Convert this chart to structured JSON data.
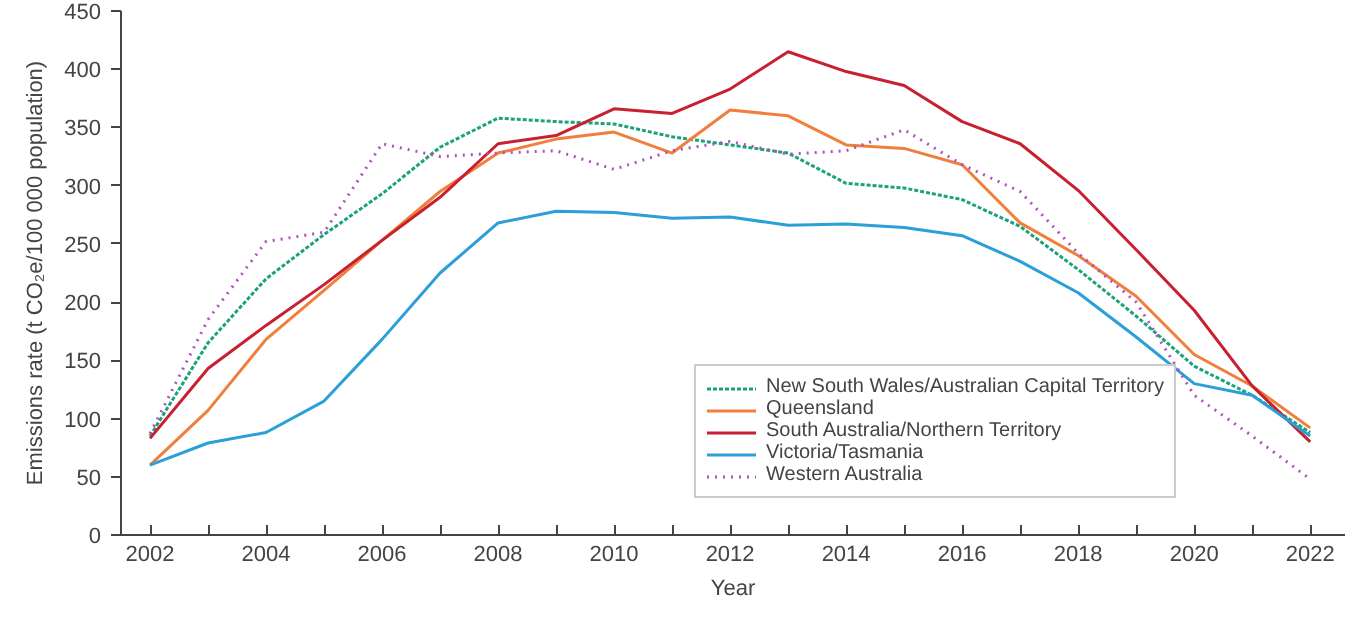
{
  "chart_data": {
    "type": "line",
    "xlabel": "Year",
    "ylabel": "Emissions rate (t CO₂e/100 000 population)",
    "x": [
      2002,
      2003,
      2004,
      2005,
      2006,
      2007,
      2008,
      2009,
      2010,
      2011,
      2012,
      2013,
      2014,
      2015,
      2016,
      2017,
      2018,
      2019,
      2020,
      2021,
      2022
    ],
    "series": [
      {
        "name": "New South Wales/Australian Capital Territory",
        "color": "#1aa37a",
        "line_style": "dashed",
        "values": [
          85,
          165,
          220,
          258,
          293,
          333,
          358,
          355,
          353,
          342,
          335,
          328,
          302,
          298,
          288,
          265,
          228,
          188,
          145,
          120,
          88
        ]
      },
      {
        "name": "Queensland",
        "color": "#f07f3c",
        "line_style": "solid",
        "values": [
          60,
          107,
          168,
          210,
          253,
          295,
          328,
          340,
          346,
          328,
          365,
          360,
          335,
          332,
          318,
          268,
          240,
          205,
          155,
          128,
          92
        ]
      },
      {
        "name": "South Australia/Northern Territory",
        "color": "#c8202f",
        "line_style": "solid",
        "values": [
          83,
          143,
          180,
          215,
          253,
          290,
          336,
          343,
          366,
          362,
          383,
          415,
          398,
          386,
          355,
          336,
          296,
          245,
          193,
          128,
          80
        ]
      },
      {
        "name": "Victoria/Tasmania",
        "color": "#2a9fd8",
        "line_style": "solid",
        "values": [
          60,
          79,
          88,
          115,
          168,
          225,
          268,
          278,
          277,
          272,
          273,
          266,
          267,
          264,
          257,
          235,
          208,
          170,
          130,
          120,
          85
        ]
      },
      {
        "name": "Western Australia",
        "color": "#b04fbf",
        "line_style": "dotted",
        "values": [
          87,
          185,
          252,
          260,
          336,
          325,
          328,
          330,
          314,
          330,
          338,
          327,
          330,
          348,
          318,
          295,
          242,
          200,
          120,
          85,
          48
        ]
      }
    ],
    "xlim": [
      2001.5,
      2022.6
    ],
    "ylim": [
      0,
      450
    ],
    "xticks": [
      2002,
      {
        "value": 2003,
        "label": null
      },
      2004,
      {
        "value": 2005,
        "label": null
      },
      2006,
      {
        "value": 2007,
        "label": null
      },
      2008,
      {
        "value": 2009,
        "label": null
      },
      2010,
      {
        "value": 2011,
        "label": null
      },
      2012,
      {
        "value": 2013,
        "label": null
      },
      2014,
      {
        "value": 2015,
        "label": null
      },
      2016,
      {
        "value": 2017,
        "label": null
      },
      2018,
      {
        "value": 2019,
        "label": null
      },
      2020,
      {
        "value": 2021,
        "label": null
      },
      2022
    ],
    "yticks": [
      0,
      50,
      100,
      150,
      200,
      250,
      300,
      350,
      400,
      450
    ],
    "grid": false,
    "legend": "bottom right",
    "marker": "none"
  }
}
